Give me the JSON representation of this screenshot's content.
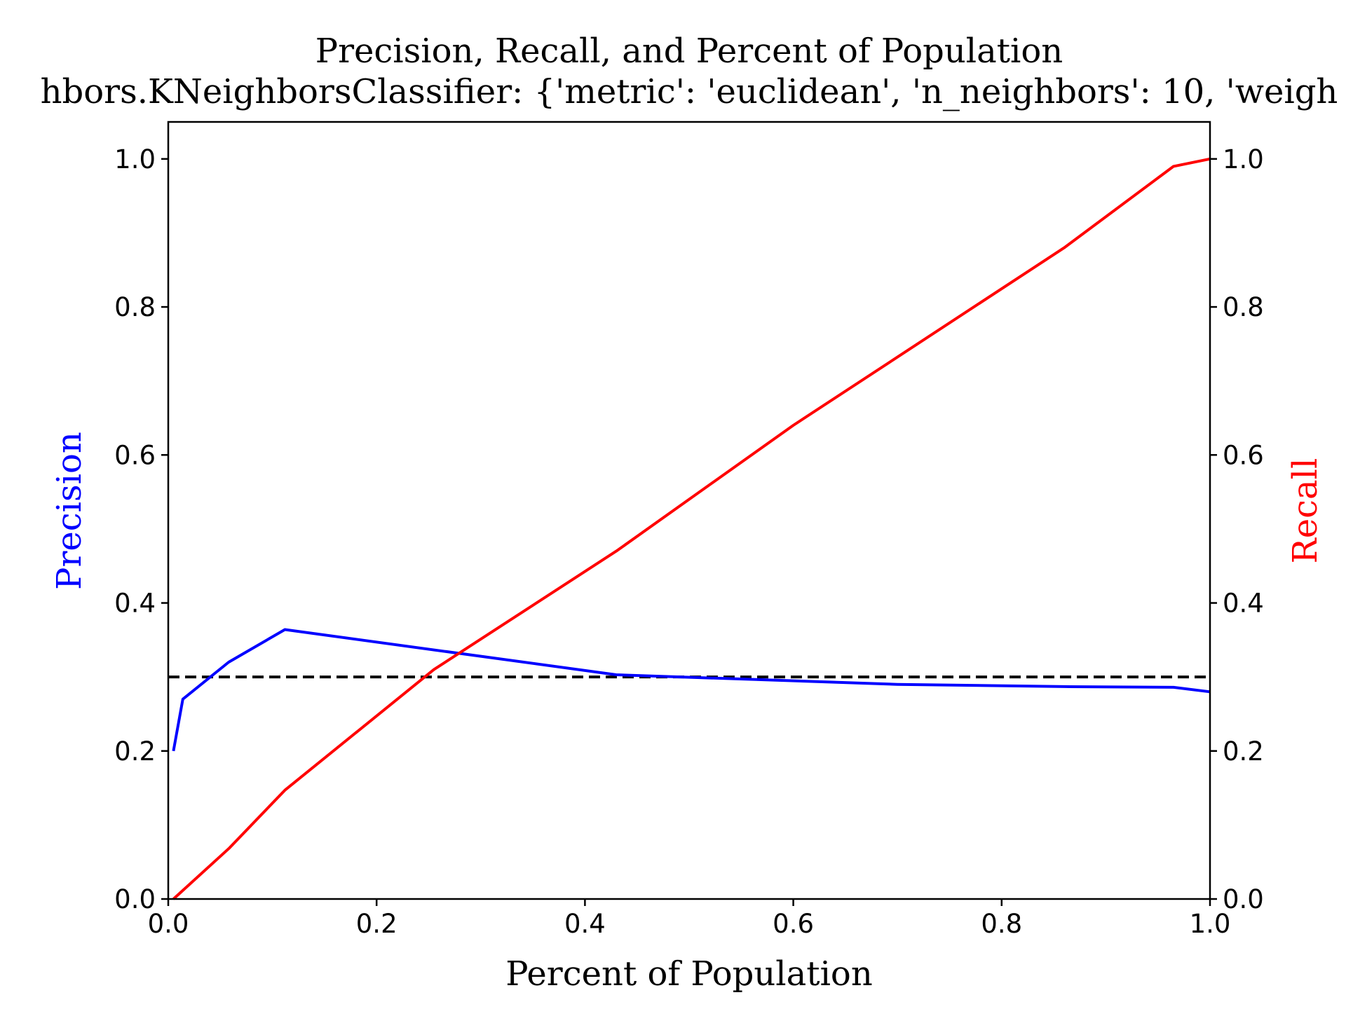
{
  "chart_data": {
    "type": "line",
    "title": "Precision, Recall, and Percent of Population",
    "subtitle": "hbors.KNeighborsClassifier: {'metric': 'euclidean', 'n_neighbors': 10, 'weigh",
    "xlabel": "Percent of Population",
    "ylabel_left": "Precision",
    "ylabel_right": "Recall",
    "xlim": [
      0,
      1
    ],
    "ylim": [
      0,
      1.05
    ],
    "ylim_right": [
      0,
      1.05
    ],
    "x_ticks": [
      "0.0",
      "0.2",
      "0.4",
      "0.6",
      "0.8",
      "1.0"
    ],
    "y_ticks": [
      "0.0",
      "0.2",
      "0.4",
      "0.6",
      "0.8",
      "1.0"
    ],
    "y_ticks_right": [
      "0.0",
      "0.2",
      "0.4",
      "0.6",
      "0.8",
      "1.0"
    ],
    "grid": false,
    "series": [
      {
        "axis": "left",
        "color": "#0000ff",
        "x": [
          0.005,
          0.014,
          0.058,
          0.112,
          0.43,
          0.7,
          0.86,
          0.965,
          1.0
        ],
        "y": [
          0.2,
          0.27,
          0.32,
          0.364,
          0.303,
          0.29,
          0.287,
          0.286,
          0.28
        ]
      },
      {
        "axis": "right",
        "color": "#ff0000",
        "x": [
          0.005,
          0.058,
          0.112,
          0.255,
          0.43,
          0.6,
          0.86,
          0.965,
          1.0
        ],
        "y": [
          0.0,
          0.068,
          0.147,
          0.31,
          0.47,
          0.64,
          0.88,
          0.99,
          1.0
        ]
      }
    ],
    "reference_line": {
      "y": 0.3,
      "style": "dashed",
      "color": "#000000"
    },
    "colors": {
      "precision": "#0000ff",
      "recall": "#ff0000",
      "axes": "#000000"
    }
  }
}
